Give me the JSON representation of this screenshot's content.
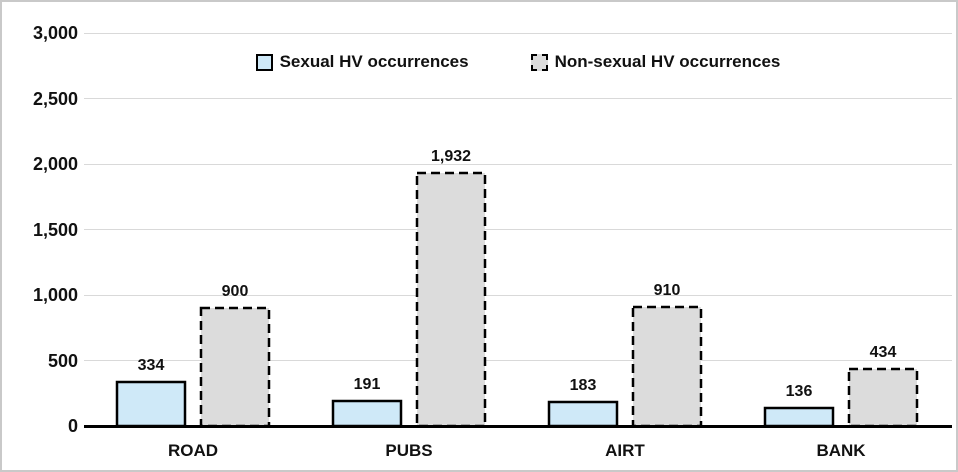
{
  "chart_data": {
    "type": "bar",
    "categories": [
      "ROAD",
      "PUBS",
      "AIRT",
      "BANK"
    ],
    "series": [
      {
        "name": "Sexual HV occurrences",
        "values": [
          334,
          191,
          183,
          136
        ],
        "labels": [
          "334",
          "191",
          "183",
          "136"
        ],
        "fill": "#cfe9f8",
        "border_style": "solid"
      },
      {
        "name": "Non-sexual HV occurrences",
        "values": [
          900,
          1932,
          910,
          434
        ],
        "labels": [
          "900",
          "1,932",
          "910",
          "434"
        ],
        "fill": "#dcdcdc",
        "border_style": "dashed"
      }
    ],
    "title": "",
    "xlabel": "",
    "ylabel": "",
    "ylim": [
      0,
      3000
    ],
    "ytick_interval": 500,
    "yticks": [
      "0",
      "500",
      "1,000",
      "1,500",
      "2,000",
      "2,500",
      "3,000"
    ],
    "grid": true,
    "legend_position": "top-center"
  },
  "colors": {
    "axis": "#000000",
    "gridline": "#d9d9d9",
    "text": "#111111",
    "frame_border": "#c9c9c9",
    "sexual_fill": "#cfe9f8",
    "nonsexual_fill": "#dcdcdc"
  }
}
